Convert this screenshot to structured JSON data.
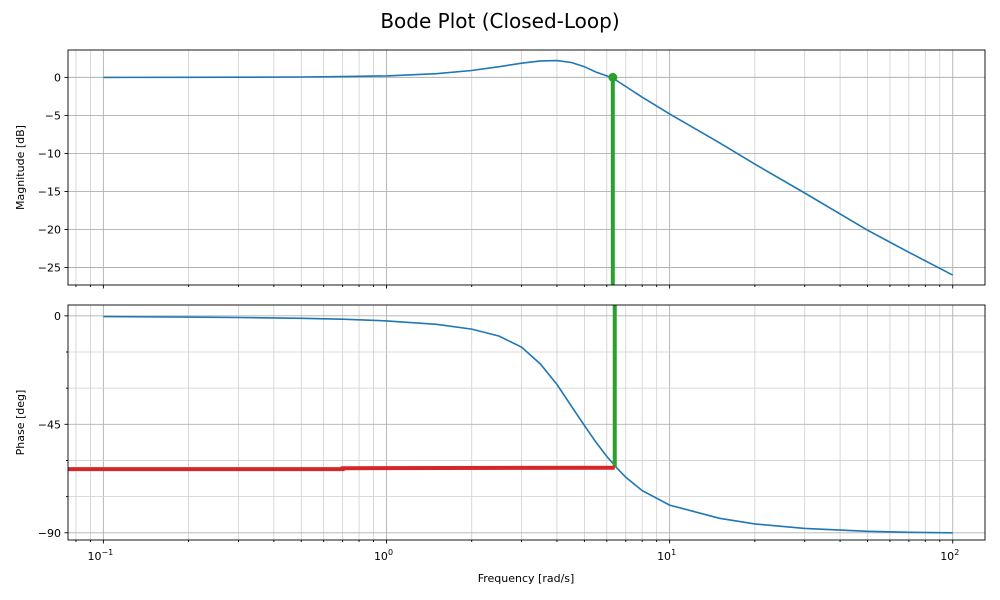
{
  "chart_data": {
    "type": "line",
    "title": "Bode Plot (Closed-Loop)",
    "xlabel": "Frequency [rad/s]",
    "xscale": "log",
    "xlim": [
      0.075,
      130
    ],
    "xticks": [
      {
        "value": 0.1,
        "base": "10",
        "exp": "−1"
      },
      {
        "value": 1,
        "base": "10",
        "exp": "0"
      },
      {
        "value": 10,
        "base": "10",
        "exp": "1"
      },
      {
        "value": 100,
        "base": "10",
        "exp": "2"
      }
    ],
    "grid": true,
    "colors": {
      "curve": "#1f77b4",
      "marker_green": "#2ca02c",
      "marker_red": "#d62728"
    },
    "subplots": [
      {
        "ylabel": "Magnitude [dB]",
        "ylim": [
          -27.3,
          3.6
        ],
        "yticks": [
          {
            "value": 0,
            "label": "0"
          },
          {
            "value": -5,
            "label": "−5"
          },
          {
            "value": -10,
            "label": "−10"
          },
          {
            "value": -15,
            "label": "−15"
          },
          {
            "value": -20,
            "label": "−20"
          },
          {
            "value": -25,
            "label": "−25"
          }
        ],
        "series": [
          {
            "x": [
              0.1,
              0.2,
              0.3,
              0.5,
              0.7,
              1,
              1.5,
              2,
              2.5,
              3,
              3.5,
              4,
              4.5,
              5,
              5.5,
              6,
              6.3,
              7,
              8,
              10,
              15,
              20,
              30,
              50,
              70,
              100
            ],
            "y": [
              0,
              0.01,
              0.02,
              0.05,
              0.1,
              0.2,
              0.48,
              0.9,
              1.4,
              1.87,
              2.17,
              2.2,
              1.95,
              1.4,
              0.7,
              0.2,
              -0.1,
              -1.2,
              -2.6,
              -4.8,
              -8.6,
              -11.4,
              -15.2,
              -20.1,
              -23.0,
              -26.0
            ]
          }
        ],
        "markers": [
          {
            "kind": "vertical-line",
            "x": 6.3,
            "y_from": 0,
            "y_to": -27.3
          },
          {
            "kind": "point",
            "x": 6.3,
            "y": 0
          }
        ]
      },
      {
        "ylabel": "Phase [deg]",
        "ylim": [
          -93,
          4.5
        ],
        "yticks": [
          {
            "value": 0,
            "label": "0"
          },
          {
            "value": -45,
            "label": "−45"
          },
          {
            "value": -90,
            "label": "−90"
          }
        ],
        "yminor_ticks": [
          -15,
          -30,
          -60,
          -75
        ],
        "series": [
          {
            "x": [
              0.1,
              0.2,
              0.3,
              0.5,
              0.7,
              1,
              1.5,
              2,
              2.5,
              3,
              3.5,
              4,
              4.5,
              5,
              5.5,
              6,
              6.5,
              7,
              8,
              10,
              15,
              20,
              30,
              50,
              70,
              100
            ],
            "y": [
              -0.3,
              -0.5,
              -0.7,
              -1.0,
              -1.4,
              -2.1,
              -3.5,
              -5.5,
              -8.4,
              -13,
              -20,
              -28.5,
              -37.5,
              -45.5,
              -52.5,
              -58.3,
              -63,
              -67,
              -72.5,
              -78.5,
              -84,
              -86.3,
              -88.2,
              -89.4,
              -89.8,
              -90
            ]
          }
        ],
        "markers": [
          {
            "kind": "vertical-line",
            "x": 6.4,
            "y_from": 4.5,
            "y_to": -63
          },
          {
            "kind": "horizontal-line",
            "points": [
              [
                0.075,
                -63.6
              ],
              [
                0.7,
                -63.6
              ],
              [
                0.7,
                -63.2
              ],
              [
                6.4,
                -63
              ]
            ]
          }
        ]
      }
    ]
  }
}
